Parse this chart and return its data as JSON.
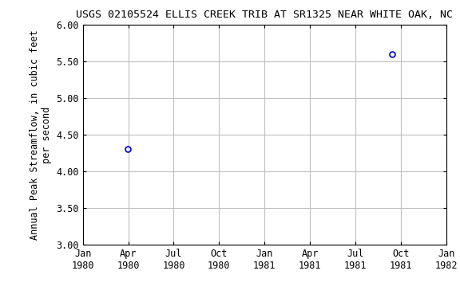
{
  "title": "USGS 02105524 ELLIS CREEK TRIB AT SR1325 NEAR WHITE OAK, NC",
  "ylabel_line1": "Annual Peak Streamflow, in cubic feet",
  "ylabel_line2": "per second",
  "ylim": [
    3.0,
    6.0
  ],
  "yticks": [
    3.0,
    3.5,
    4.0,
    4.5,
    5.0,
    5.5,
    6.0
  ],
  "ytick_labels": [
    "3.00",
    "3.50",
    "4.00",
    "4.50",
    "5.00",
    "5.50",
    "6.00"
  ],
  "points": [
    {
      "date_num": 1980.247,
      "value": 4.3
    },
    {
      "date_num": 1981.704,
      "value": 5.6
    }
  ],
  "point_color": "#0000CC",
  "marker": "o",
  "marker_size": 5,
  "marker_facecolor": "none",
  "marker_linewidth": 1.2,
  "background_color": "#ffffff",
  "grid_color": "#c0c0c0",
  "title_fontsize": 9.5,
  "label_fontsize": 8.5,
  "tick_fontsize": 8.5,
  "x_start": 1980.0,
  "x_end": 1982.0,
  "x_ticks": [
    1980.0,
    1980.25,
    1980.5,
    1980.75,
    1981.0,
    1981.25,
    1981.5,
    1981.75,
    1982.0
  ],
  "x_tick_labels": [
    "Jan\n1980",
    "Apr\n1980",
    "Jul\n1980",
    "Oct\n1980",
    "Jan\n1981",
    "Apr\n1981",
    "Jul\n1981",
    "Oct\n1981",
    "Jan\n1982"
  ]
}
